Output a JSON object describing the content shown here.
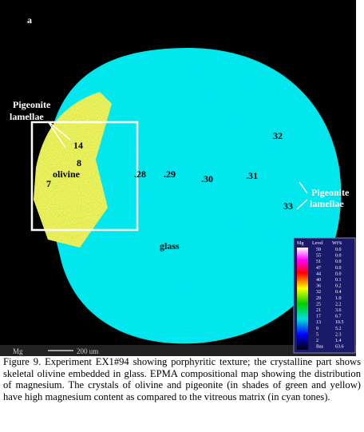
{
  "figure": {
    "panel_label": "a",
    "labels": {
      "pigeonite_left": [
        "Pigeonite",
        "lamellae"
      ],
      "point_14": "14",
      "point_8": "8",
      "olivine": "olivine",
      "point_7": "7",
      "point_28": ".28",
      "point_29": ".29",
      "point_30": ".30",
      "point_31": ".31",
      "point_32": "32",
      "point_33": "33",
      "pigeonite_right": [
        "Pigeonite",
        "lamellae"
      ],
      "glass": "glass"
    },
    "scale_bar": {
      "element": "Mg",
      "length": "200 um"
    },
    "legend": {
      "element": "Mg",
      "level_header": "Level",
      "wt_header": "Wt%",
      "levels": [
        "59",
        "55",
        "51",
        "47",
        "44",
        "40",
        "36",
        "32",
        "29",
        "25",
        "21",
        "17",
        "13",
        "9",
        "5",
        "2",
        "Bas"
      ],
      "wt": [
        "0.0",
        "0.0",
        "0.0",
        "0.0",
        "0.0",
        "0.1",
        "0.2",
        "0.4",
        "1.0",
        "2.2",
        "3.6",
        "6.7",
        "10.5",
        "5.2",
        "2.3",
        "1.4",
        "63.6"
      ]
    }
  },
  "caption": "Figure 9. Experiment EX1#94 showing porphyritic texture; the crystalline part shows skeletal olivine embedded in glass. EPMA compositional map showing the distribution of magnesium. The crystals of olivine and pigeonite (in shades of green and yellow) have high magnesium content as compared to the vitreous matrix (in cyan tones)."
}
